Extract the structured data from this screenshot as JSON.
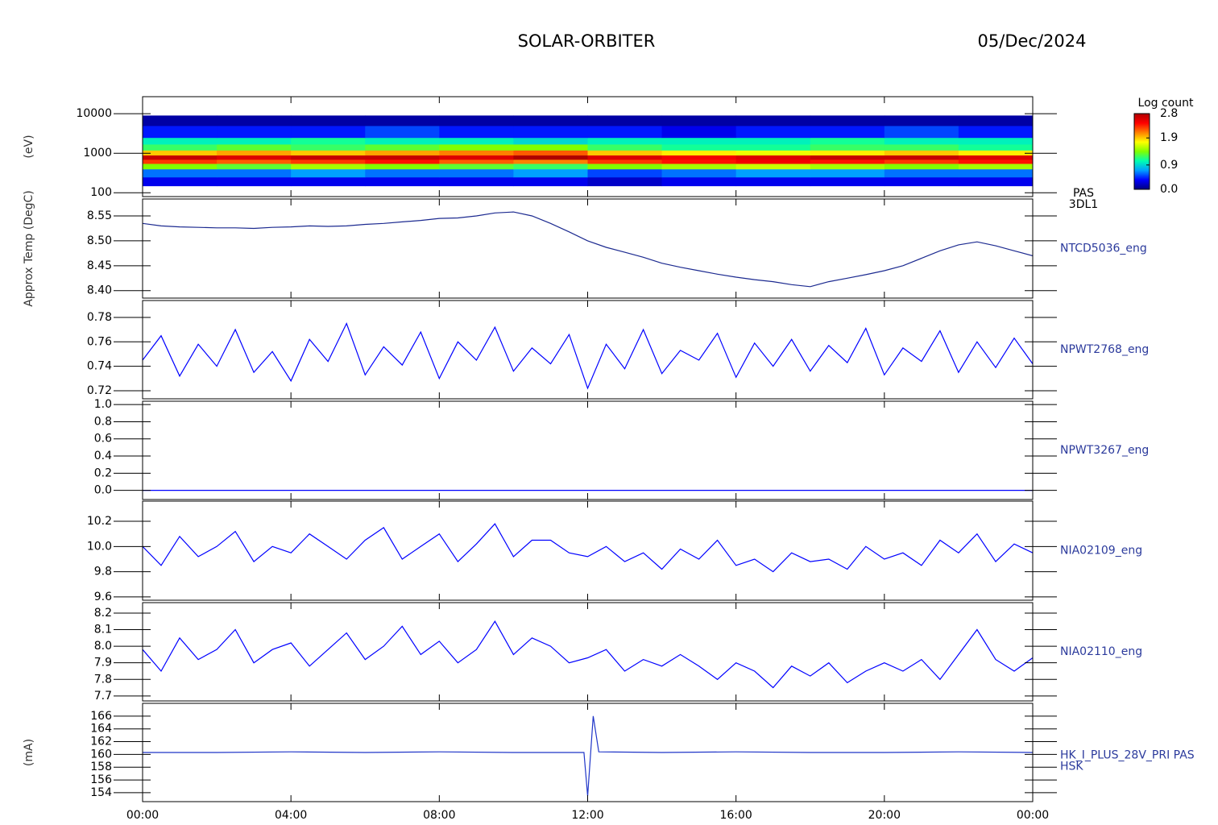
{
  "title": "SOLAR-ORBITER",
  "date": "05/Dec/2024",
  "xlim": [
    0,
    24
  ],
  "xticks": [
    {
      "value": 0,
      "label": "00:00"
    },
    {
      "value": 4,
      "label": "04:00"
    },
    {
      "value": 8,
      "label": "08:00"
    },
    {
      "value": 12,
      "label": "12:00"
    },
    {
      "value": 16,
      "label": "16:00"
    },
    {
      "value": 20,
      "label": "20:00"
    },
    {
      "value": 24,
      "label": "00:00"
    }
  ],
  "chart_data": [
    {
      "type": "heatmap",
      "labels": [
        "PAS",
        "3DL1"
      ],
      "ylabel": "(eV)",
      "log_y": true,
      "ylim": [
        80,
        27000
      ],
      "yticks": [
        100,
        1000,
        10000
      ],
      "x": [
        0,
        2,
        4,
        6,
        8,
        10,
        12,
        14,
        16,
        18,
        20,
        22,
        24
      ],
      "y": [
        150,
        250,
        400,
        550,
        700,
        900,
        1200,
        1700,
        2500,
        5000,
        9000
      ],
      "values": [
        [
          0.3,
          0.3,
          0.3,
          0.3,
          0.3,
          0.3,
          0.2,
          0.3,
          0.3,
          0.3,
          0.3,
          0.3
        ],
        [
          0.6,
          0.6,
          0.7,
          0.6,
          0.6,
          0.7,
          0.5,
          0.6,
          0.7,
          0.7,
          0.6,
          0.6
        ],
        [
          1.4,
          1.3,
          1.5,
          1.4,
          1.3,
          1.2,
          1.4,
          1.5,
          1.6,
          1.5,
          1.4,
          1.5
        ],
        [
          2.3,
          2.2,
          2.3,
          2.4,
          2.2,
          2.1,
          2.3,
          2.4,
          2.5,
          2.4,
          2.3,
          2.4
        ],
        [
          2.7,
          2.6,
          2.7,
          2.7,
          2.6,
          2.8,
          2.6,
          2.5,
          2.6,
          2.7,
          2.7,
          2.6
        ],
        [
          1.9,
          2.0,
          1.9,
          2.0,
          2.1,
          2.2,
          1.9,
          1.8,
          1.7,
          1.8,
          1.9,
          1.8
        ],
        [
          1.2,
          1.3,
          1.2,
          1.3,
          1.4,
          1.4,
          1.2,
          1.1,
          1.1,
          1.2,
          1.2,
          1.1
        ],
        [
          1.0,
          1.0,
          1.1,
          1.0,
          1.0,
          0.9,
          1.0,
          1.0,
          1.0,
          1.1,
          1.0,
          1.0
        ],
        [
          0.4,
          0.4,
          0.4,
          0.5,
          0.4,
          0.4,
          0.4,
          0.3,
          0.4,
          0.4,
          0.5,
          0.4
        ],
        [
          0.1,
          0.1,
          0.1,
          0.1,
          0.1,
          0.1,
          0.1,
          0.1,
          0.1,
          0.1,
          0.1,
          0.1
        ]
      ],
      "colorbar_title": "Log count",
      "clim": [
        0,
        2.8
      ],
      "cbticks": [
        {
          "value": 0,
          "label": "0.0"
        },
        0.9,
        1.9,
        2.8
      ],
      "colormap": [
        "#00007f",
        "#0000ff",
        "#00a0ff",
        "#00ffb0",
        "#80ff00",
        "#ffff00",
        "#ff8000",
        "#ff0000",
        "#b00000"
      ]
    },
    {
      "type": "line",
      "labels": [
        "NTCD5036_eng"
      ],
      "ylabel": "Approx Temp (DegC)",
      "color": "#1c2a90",
      "ylim": [
        8.385,
        8.584
      ],
      "yticks": [
        {
          "value": 8.4,
          "label": "8.40"
        },
        8.45,
        {
          "value": 8.5,
          "label": "8.50"
        },
        8.55
      ],
      "x": [
        0,
        0.5,
        1,
        1.5,
        2,
        2.5,
        3,
        3.5,
        4,
        4.5,
        5,
        5.5,
        6,
        6.5,
        7,
        7.5,
        8,
        8.5,
        9,
        9.5,
        10,
        10.5,
        11,
        11.5,
        12,
        12.5,
        13,
        13.5,
        14,
        14.5,
        15,
        15.5,
        16,
        16.5,
        17,
        17.5,
        18,
        18.5,
        19,
        19.5,
        20,
        20.5,
        21,
        21.5,
        22,
        22.5,
        23,
        23.5,
        24
      ],
      "values": [
        8.535,
        8.53,
        8.528,
        8.527,
        8.526,
        8.526,
        8.525,
        8.527,
        8.528,
        8.53,
        8.529,
        8.53,
        8.533,
        8.535,
        8.538,
        8.541,
        8.545,
        8.546,
        8.55,
        8.556,
        8.558,
        8.55,
        8.535,
        8.518,
        8.5,
        8.487,
        8.477,
        8.467,
        8.455,
        8.447,
        8.44,
        8.433,
        8.427,
        8.422,
        8.418,
        8.412,
        8.408,
        8.418,
        8.425,
        8.432,
        8.44,
        8.45,
        8.465,
        8.48,
        8.492,
        8.498,
        8.49,
        8.48,
        8.47
      ]
    },
    {
      "type": "line",
      "labels": [
        "NPWT2768_eng"
      ],
      "color": "#0000ff",
      "ylim": [
        0.7134,
        0.7938
      ],
      "yticks": [
        0.72,
        0.74,
        0.76,
        0.78
      ],
      "x": [
        0,
        0.5,
        1,
        1.5,
        2,
        2.5,
        3,
        3.5,
        4,
        4.5,
        5,
        5.5,
        6,
        6.5,
        7,
        7.5,
        8,
        8.5,
        9,
        9.5,
        10,
        10.5,
        11,
        11.5,
        12,
        12.5,
        13,
        13.5,
        14,
        14.5,
        15,
        15.5,
        16,
        16.5,
        17,
        17.5,
        18,
        18.5,
        19,
        19.5,
        20,
        20.5,
        21,
        21.5,
        22,
        22.5,
        23,
        23.5,
        24
      ],
      "values": [
        0.745,
        0.765,
        0.732,
        0.758,
        0.74,
        0.77,
        0.735,
        0.752,
        0.728,
        0.762,
        0.744,
        0.775,
        0.733,
        0.756,
        0.741,
        0.768,
        0.73,
        0.76,
        0.745,
        0.772,
        0.736,
        0.755,
        0.742,
        0.766,
        0.722,
        0.758,
        0.738,
        0.77,
        0.734,
        0.753,
        0.745,
        0.767,
        0.731,
        0.759,
        0.74,
        0.762,
        0.736,
        0.757,
        0.743,
        0.771,
        0.733,
        0.755,
        0.744,
        0.769,
        0.735,
        0.76,
        0.739,
        0.763,
        0.742
      ]
    },
    {
      "type": "line",
      "labels": [
        "NPWT3267_eng"
      ],
      "color": "#0000ff",
      "ylim": [
        -0.107,
        1.039
      ],
      "yticks": [
        {
          "value": 0,
          "label": "0.0"
        },
        0.2,
        0.4,
        0.6,
        0.8,
        {
          "value": 1,
          "label": "1.0"
        }
      ],
      "x": [
        0,
        24
      ],
      "values": [
        0,
        0
      ]
    },
    {
      "type": "line",
      "labels": [
        "NIA02109_eng"
      ],
      "color": "#0000ff",
      "ylim": [
        9.574,
        10.36
      ],
      "yticks": [
        9.6,
        9.8,
        {
          "value": 10,
          "label": "10.0"
        },
        10.2
      ],
      "x": [
        0,
        0.5,
        1,
        1.5,
        2,
        2.5,
        3,
        3.5,
        4,
        4.5,
        5,
        5.5,
        6,
        6.5,
        7,
        7.5,
        8,
        8.5,
        9,
        9.5,
        10,
        10.5,
        11,
        11.5,
        12,
        12.5,
        13,
        13.5,
        14,
        14.5,
        15,
        15.5,
        16,
        16.5,
        17,
        17.5,
        18,
        18.5,
        19,
        19.5,
        20,
        20.5,
        21,
        21.5,
        22,
        22.5,
        23,
        23.5,
        24
      ],
      "values": [
        10.0,
        9.85,
        10.08,
        9.92,
        10.0,
        10.12,
        9.88,
        10.0,
        9.95,
        10.1,
        10.0,
        9.9,
        10.05,
        10.15,
        9.9,
        10.0,
        10.1,
        9.88,
        10.02,
        10.18,
        9.92,
        10.05,
        10.05,
        9.95,
        9.92,
        10.0,
        9.88,
        9.95,
        9.82,
        9.98,
        9.9,
        10.05,
        9.85,
        9.9,
        9.8,
        9.95,
        9.88,
        9.9,
        9.82,
        10.0,
        9.9,
        9.95,
        9.85,
        10.05,
        9.95,
        10.1,
        9.88,
        10.02,
        9.95
      ]
    },
    {
      "type": "line",
      "labels": [
        "NIA02110_eng"
      ],
      "color": "#0000ff",
      "ylim": [
        7.67,
        8.263
      ],
      "yticks": [
        7.7,
        7.8,
        7.9,
        {
          "value": 8,
          "label": "8.0"
        },
        8.1,
        8.2
      ],
      "x": [
        0,
        0.5,
        1,
        1.5,
        2,
        2.5,
        3,
        3.5,
        4,
        4.5,
        5,
        5.5,
        6,
        6.5,
        7,
        7.5,
        8,
        8.5,
        9,
        9.5,
        10,
        10.5,
        11,
        11.5,
        12,
        12.5,
        13,
        13.5,
        14,
        14.5,
        15,
        15.5,
        16,
        16.5,
        17,
        17.5,
        18,
        18.5,
        19,
        19.5,
        20,
        20.5,
        21,
        21.5,
        22,
        22.5,
        23,
        23.5,
        24
      ],
      "values": [
        7.98,
        7.85,
        8.05,
        7.92,
        7.98,
        8.1,
        7.9,
        7.98,
        8.02,
        7.88,
        7.98,
        8.08,
        7.92,
        8.0,
        8.12,
        7.95,
        8.03,
        7.9,
        7.98,
        8.15,
        7.95,
        8.05,
        8.0,
        7.9,
        7.93,
        7.98,
        7.85,
        7.92,
        7.88,
        7.95,
        7.88,
        7.8,
        7.9,
        7.85,
        7.75,
        7.88,
        7.82,
        7.9,
        7.78,
        7.85,
        7.9,
        7.85,
        7.92,
        7.8,
        7.95,
        8.1,
        7.92,
        7.85,
        7.93
      ]
    },
    {
      "type": "line",
      "labels": [
        "HK_I_PLUS_28V_PRI PAS",
        "HSK"
      ],
      "ylabel": "(mA)",
      "color": "#1f35c8",
      "ylim": [
        152.6,
        168.0
      ],
      "yticks": [
        154,
        156,
        158,
        160,
        162,
        164,
        166
      ],
      "x": [
        0,
        2,
        4,
        6,
        8,
        10,
        11.9,
        12.0,
        12.15,
        12.3,
        14,
        16,
        18,
        20,
        22,
        24
      ],
      "values": [
        160.3,
        160.3,
        160.4,
        160.3,
        160.4,
        160.3,
        160.3,
        153.5,
        166.0,
        160.4,
        160.3,
        160.4,
        160.3,
        160.3,
        160.4,
        160.3
      ]
    }
  ]
}
